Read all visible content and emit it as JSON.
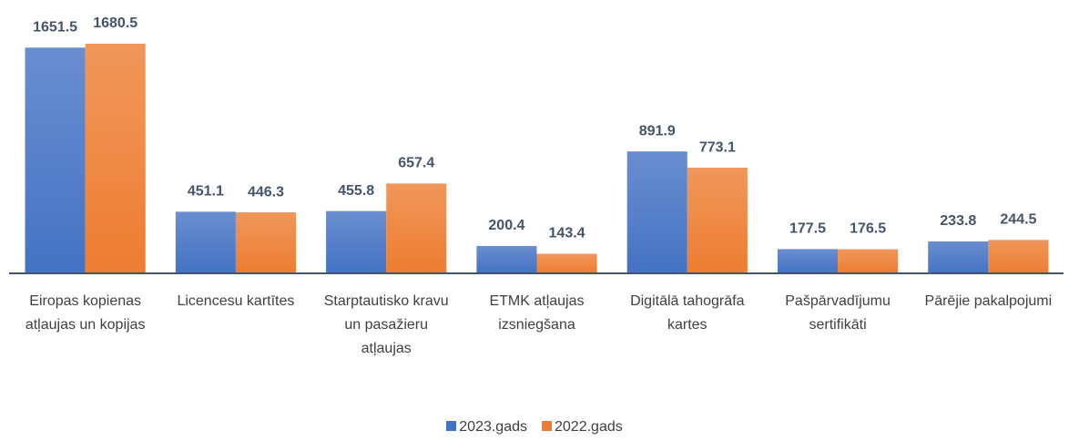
{
  "chart_data": {
    "type": "bar",
    "categories": [
      "Eiropas kopienas atļaujas un kopijas",
      "Licencesu kartītes",
      "Starptautisko kravu un pasažieru atļaujas",
      "ETMK atļaujas izsniegšana",
      "Digitālā tahogrāfa kartes",
      "Pašpārvadījumu sertifikāti",
      "Pārējie pakalpojumi"
    ],
    "series": [
      {
        "name": "2023.gads",
        "color": "#4472c4",
        "values": [
          1651.5,
          451.1,
          455.8,
          200.4,
          891.9,
          177.5,
          233.8
        ]
      },
      {
        "name": "2022.gads",
        "color": "#ed7d31",
        "values": [
          1680.5,
          446.3,
          657.4,
          143.4,
          773.1,
          176.5,
          244.5
        ]
      }
    ],
    "ylim": [
      0,
      1700
    ],
    "legend": "bottom"
  }
}
